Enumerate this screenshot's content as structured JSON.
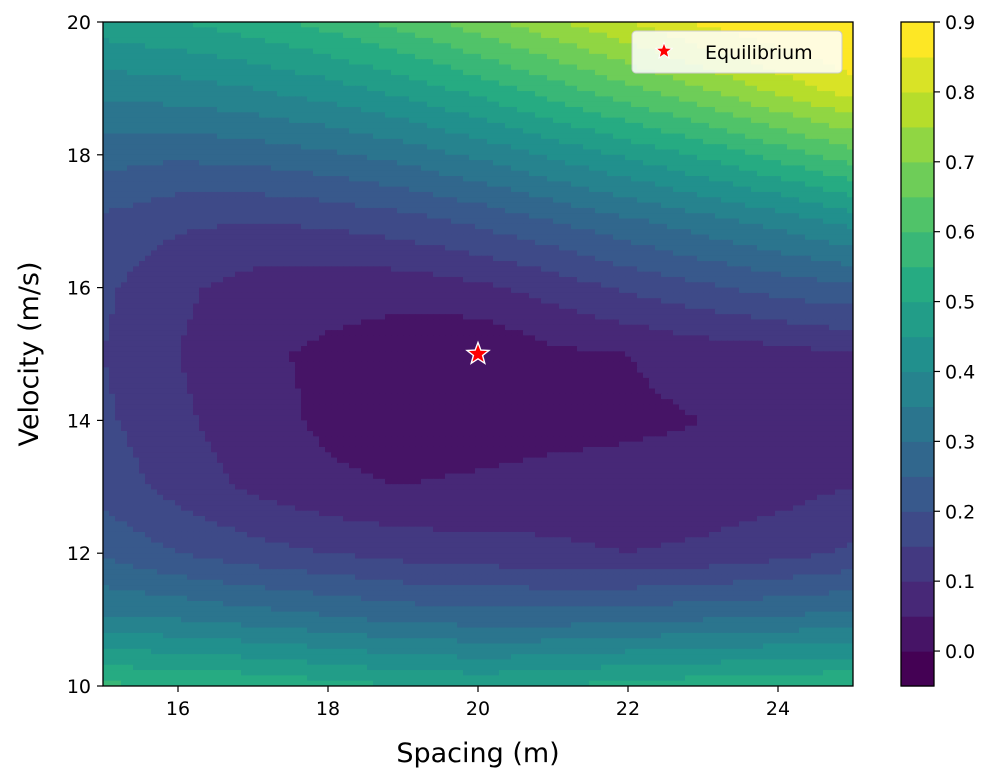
{
  "chart_data": {
    "type": "heatmap",
    "subtype": "filled-contour",
    "colormap": "viridis",
    "title": "",
    "xlabel": "Spacing (m)",
    "ylabel": "Velocity (m/s)",
    "xlim": [
      15,
      25
    ],
    "ylim": [
      10,
      20
    ],
    "xticks": [
      "16",
      "18",
      "20",
      "22",
      "24"
    ],
    "xtick_values": [
      16,
      18,
      20,
      22,
      24
    ],
    "yticks": [
      "10",
      "12",
      "14",
      "16",
      "18",
      "20"
    ],
    "ytick_values": [
      10,
      12,
      14,
      16,
      18,
      20
    ],
    "colorbar": {
      "vmin": -0.05,
      "vmax": 0.9,
      "levels": [
        -0.05,
        0.0,
        0.05,
        0.1,
        0.15,
        0.2,
        0.25,
        0.3,
        0.35,
        0.4,
        0.45,
        0.5,
        0.55,
        0.6,
        0.65,
        0.7,
        0.75,
        0.8,
        0.85,
        0.9
      ],
      "ticks": [
        "0.0",
        "0.1",
        "0.2",
        "0.3",
        "0.4",
        "0.5",
        "0.6",
        "0.7",
        "0.8",
        "0.9"
      ],
      "tick_values": [
        0.0,
        0.1,
        0.2,
        0.3,
        0.4,
        0.5,
        0.6,
        0.7,
        0.8,
        0.9
      ]
    },
    "grid_x": [
      15,
      16,
      17,
      18,
      19,
      20,
      21,
      22,
      23,
      24,
      25
    ],
    "grid_y": [
      10,
      11,
      12,
      13,
      14,
      15,
      16,
      17,
      18,
      19,
      20
    ],
    "z": [
      [
        0.56,
        0.55,
        0.54,
        0.52,
        0.5,
        0.49,
        0.5,
        0.52,
        0.53,
        0.54,
        0.55
      ],
      [
        0.36,
        0.35,
        0.33,
        0.31,
        0.29,
        0.28,
        0.28,
        0.29,
        0.3,
        0.31,
        0.32
      ],
      [
        0.24,
        0.2,
        0.17,
        0.15,
        0.13,
        0.12,
        0.11,
        0.1,
        0.11,
        0.13,
        0.16
      ],
      [
        0.18,
        0.13,
        0.09,
        0.06,
        0.05,
        0.06,
        0.07,
        0.07,
        0.07,
        0.08,
        0.1
      ],
      [
        0.16,
        0.11,
        0.07,
        0.04,
        0.02,
        0.02,
        0.03,
        0.04,
        0.05,
        0.06,
        0.07
      ],
      [
        0.15,
        0.1,
        0.06,
        0.04,
        0.02,
        0.0,
        0.04,
        0.05,
        0.07,
        0.08,
        0.1
      ],
      [
        0.16,
        0.11,
        0.08,
        0.07,
        0.07,
        0.09,
        0.12,
        0.16,
        0.19,
        0.22,
        0.24
      ],
      [
        0.19,
        0.16,
        0.15,
        0.16,
        0.18,
        0.21,
        0.25,
        0.29,
        0.33,
        0.37,
        0.42
      ],
      [
        0.27,
        0.26,
        0.27,
        0.29,
        0.32,
        0.36,
        0.41,
        0.46,
        0.51,
        0.57,
        0.63
      ],
      [
        0.37,
        0.38,
        0.4,
        0.43,
        0.47,
        0.52,
        0.58,
        0.64,
        0.7,
        0.77,
        0.83
      ],
      [
        0.48,
        0.5,
        0.53,
        0.57,
        0.62,
        0.68,
        0.74,
        0.8,
        0.86,
        0.9,
        0.93
      ]
    ],
    "markers": [
      {
        "name": "Equilibrium",
        "x": 20,
        "y": 15,
        "marker": "star",
        "color": "#ff0000",
        "edge": "#ffffff"
      }
    ],
    "legend": {
      "position": "top-right",
      "entries": [
        "Equilibrium"
      ]
    }
  }
}
